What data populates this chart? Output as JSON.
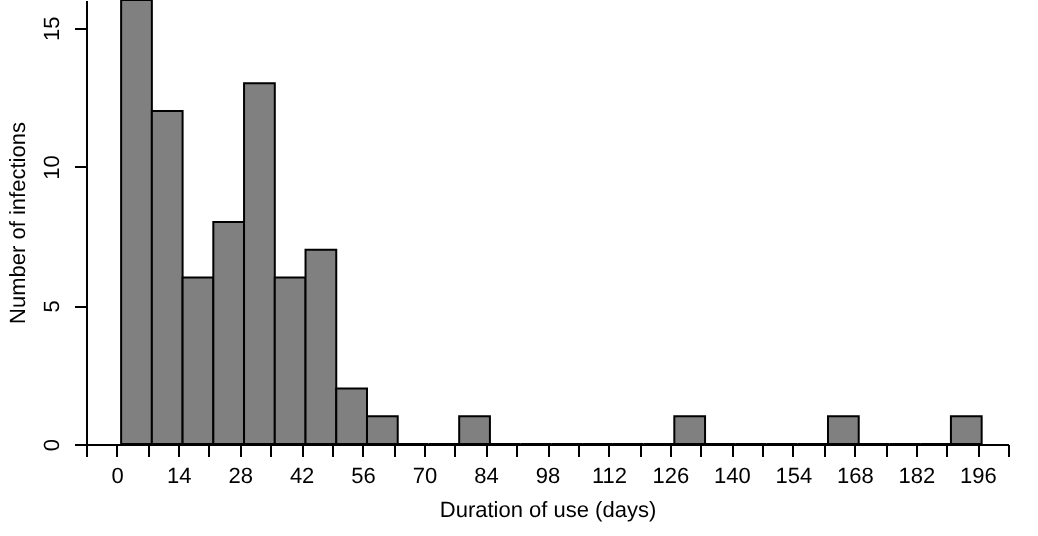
{
  "chart_data": {
    "type": "histogram",
    "xlabel": "Duration of use (days)",
    "ylabel": "Number of infections",
    "bins": [
      1,
      8,
      15,
      22,
      29,
      36,
      43,
      50,
      57,
      64,
      71,
      78,
      85,
      92,
      99,
      106,
      113,
      120,
      127,
      134,
      141,
      148,
      155,
      162,
      169,
      176,
      183,
      190,
      197
    ],
    "values": [
      16,
      12,
      6,
      8,
      13,
      6,
      7,
      2,
      1,
      0,
      0,
      1,
      0,
      0,
      0,
      0,
      0,
      0,
      1,
      0,
      0,
      0,
      0,
      1,
      0,
      0,
      0,
      1
    ],
    "color": "#808080",
    "xlim": [
      -7,
      203
    ],
    "xticks": [
      {
        "value": -7,
        "label": null
      },
      0,
      {
        "value": 7,
        "label": null
      },
      14,
      {
        "value": 21,
        "label": null
      },
      28,
      {
        "value": 35,
        "label": null
      },
      42,
      {
        "value": 49,
        "label": null
      },
      56,
      {
        "value": 63,
        "label": null
      },
      70,
      {
        "value": 77,
        "label": null
      },
      84,
      {
        "value": 91,
        "label": null
      },
      98,
      {
        "value": 105,
        "label": null
      },
      112,
      {
        "value": 119,
        "label": null
      },
      126,
      {
        "value": 133,
        "label": null
      },
      140,
      {
        "value": 147,
        "label": null
      },
      154,
      {
        "value": 161,
        "label": null
      },
      168,
      {
        "value": 175,
        "label": null
      },
      182,
      {
        "value": 189,
        "label": null
      },
      196,
      {
        "value": 203,
        "label": null
      }
    ],
    "ylim": [
      0,
      16
    ],
    "yticks": [
      0,
      5,
      10,
      15
    ],
    "grid": false
  }
}
